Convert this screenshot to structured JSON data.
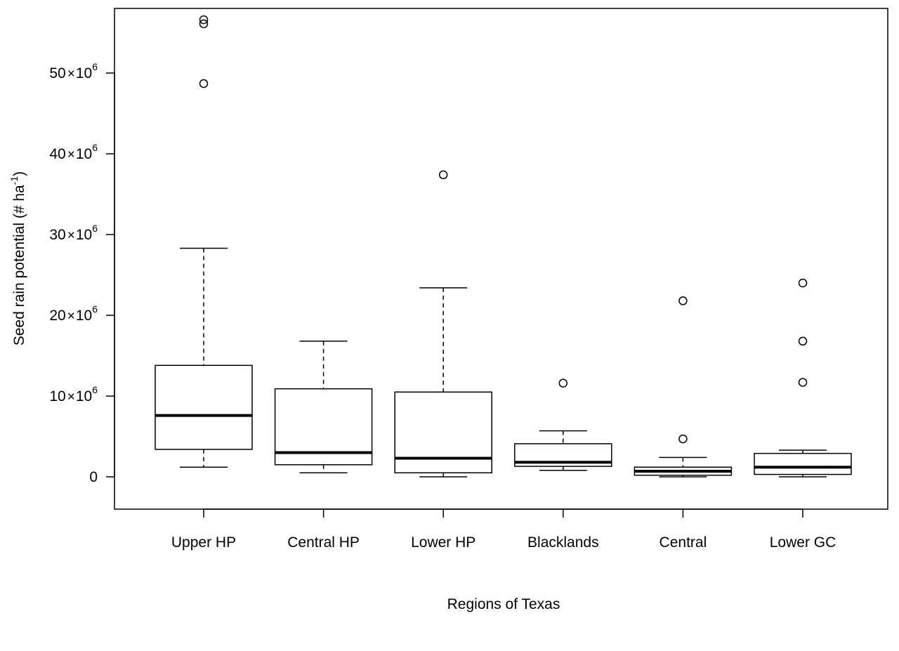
{
  "chart_data": {
    "type": "boxplot",
    "title": "",
    "xlabel": "Regions of Texas",
    "ylabel": {
      "main": "Seed rain potential (# ha",
      "sup": "-1",
      "close": ")"
    },
    "categories": [
      "Upper HP",
      "Central HP",
      "Lower HP",
      "Blacklands",
      "Central",
      "Lower GC"
    ],
    "ylim": [
      -4,
      58
    ],
    "y_unit_exponent": 6,
    "y_ticks": [
      {
        "value": 0,
        "mantissa": "0",
        "times": "",
        "exp": ""
      },
      {
        "value": 10,
        "mantissa": "10",
        "times": "×",
        "exp": "6"
      },
      {
        "value": 20,
        "mantissa": "20",
        "times": "×",
        "exp": "6"
      },
      {
        "value": 30,
        "mantissa": "30",
        "times": "×",
        "exp": "6"
      },
      {
        "value": 40,
        "mantissa": "40",
        "times": "×",
        "exp": "6"
      },
      {
        "value": 50,
        "mantissa": "50",
        "times": "×",
        "exp": "6"
      }
    ],
    "boxes": [
      {
        "category": "Upper HP",
        "whisker_low": 1.2,
        "q1": 3.4,
        "median": 7.6,
        "q3": 13.8,
        "whisker_high": 28.3,
        "outliers": [
          48.7,
          56.1,
          56.6
        ]
      },
      {
        "category": "Central HP",
        "whisker_low": 0.5,
        "q1": 1.5,
        "median": 3.0,
        "q3": 10.9,
        "whisker_high": 16.8,
        "outliers": []
      },
      {
        "category": "Lower HP",
        "whisker_low": 0.0,
        "q1": 0.5,
        "median": 2.3,
        "q3": 10.5,
        "whisker_high": 23.4,
        "outliers": [
          37.4
        ]
      },
      {
        "category": "Blacklands",
        "whisker_low": 0.8,
        "q1": 1.3,
        "median": 1.8,
        "q3": 4.1,
        "whisker_high": 5.7,
        "outliers": [
          11.6
        ]
      },
      {
        "category": "Central",
        "whisker_low": 0.0,
        "q1": 0.2,
        "median": 0.7,
        "q3": 1.2,
        "whisker_high": 2.4,
        "outliers": [
          4.7,
          21.8
        ]
      },
      {
        "category": "Lower GC",
        "whisker_low": 0.0,
        "q1": 0.3,
        "median": 1.2,
        "q3": 2.9,
        "whisker_high": 3.3,
        "outliers": [
          11.7,
          16.8,
          24.0
        ]
      }
    ],
    "grid": false,
    "legend": "none"
  }
}
